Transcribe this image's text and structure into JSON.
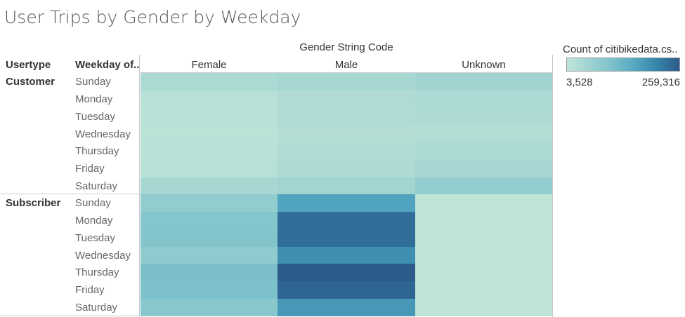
{
  "chart_data": {
    "type": "heatmap",
    "title": "User Trips by Gender by Weekday",
    "column_group_label": "Gender String Code",
    "row_headers": [
      "Usertype",
      "Weekday of.."
    ],
    "columns": [
      "Female",
      "Male",
      "Unknown"
    ],
    "legend": {
      "title": "Count of citibikedata.cs..",
      "min": 3528,
      "max": 259316,
      "min_label": "3,528",
      "max_label": "259,316",
      "color_low": "#bfe4d8",
      "color_high": "#2c5a8a",
      "placement": "top-right"
    },
    "groups": [
      {
        "usertype": "Customer",
        "rows": [
          {
            "weekday": "Sunday",
            "values": [
              22000,
              27000,
              35000
            ]
          },
          {
            "weekday": "Monday",
            "values": [
              9000,
              18000,
              21000
            ]
          },
          {
            "weekday": "Tuesday",
            "values": [
              7500,
              16000,
              20000
            ]
          },
          {
            "weekday": "Wednesday",
            "values": [
              6000,
              13000,
              15000
            ]
          },
          {
            "weekday": "Thursday",
            "values": [
              8000,
              17000,
              22000
            ]
          },
          {
            "weekday": "Friday",
            "values": [
              10000,
              20000,
              27000
            ]
          },
          {
            "weekday": "Saturday",
            "values": [
              28000,
              34000,
              52000
            ]
          }
        ]
      },
      {
        "usertype": "Subscriber",
        "rows": [
          {
            "weekday": "Sunday",
            "values": [
              55000,
              145000,
              3528
            ]
          },
          {
            "weekday": "Monday",
            "values": [
              72000,
              228000,
              3528
            ]
          },
          {
            "weekday": "Tuesday",
            "values": [
              74000,
              232000,
              3528
            ]
          },
          {
            "weekday": "Wednesday",
            "values": [
              60000,
              180000,
              3528
            ]
          },
          {
            "weekday": "Thursday",
            "values": [
              88000,
              259316,
              3528
            ]
          },
          {
            "weekday": "Friday",
            "values": [
              84000,
              243000,
              3528
            ]
          },
          {
            "weekday": "Saturday",
            "values": [
              68000,
              165000,
              3528
            ]
          }
        ]
      }
    ]
  }
}
